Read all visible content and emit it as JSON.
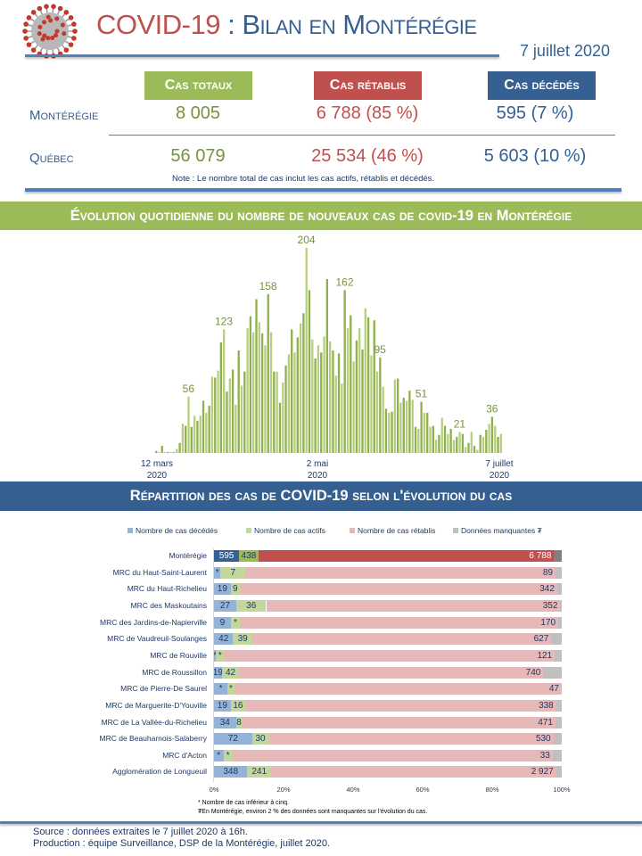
{
  "header": {
    "title_part1": "COVID-19",
    "title_part2": " : Bilan en Montérégie",
    "date": "7 juillet 2020",
    "virus_icon": "coronavirus-icon"
  },
  "summary": {
    "columns": [
      "Cas totaux",
      "Cas rétablis",
      "Cas décédés"
    ],
    "rows": [
      {
        "label": "Montérégie",
        "values": [
          "8 005",
          "6 788 (85 %)",
          "595 (7 %)"
        ]
      },
      {
        "label": "Québec",
        "values": [
          "56 079",
          "25 534 (46 %)",
          "5 603 (10 %)"
        ]
      }
    ],
    "note": "Note : Le nombre total de cas inclut les cas actifs, rétablis et décédés.",
    "colors": {
      "totaux": "#9bbb59",
      "retablis": "#c0504d",
      "decedes": "#376092"
    }
  },
  "section1": {
    "title": "Évolution quotidienne du nombre de nouveaux cas de covid-19 en Montérégie"
  },
  "section2": {
    "title": "Répartition des cas de COVID-19 selon l'évolution du cas"
  },
  "chart_data": [
    {
      "type": "bar",
      "title": "Évolution quotidienne du nombre de nouveaux cas de covid-19 en Montérégie",
      "x_start": "2020-03-12",
      "x_end": "2020-07-07",
      "x_tick_labels": [
        [
          "12 mars",
          "2020"
        ],
        [
          "2 mai",
          "2020"
        ],
        [
          "7 juillet",
          "2020"
        ]
      ],
      "values": [
        2,
        1,
        7,
        1,
        1,
        1,
        1,
        4,
        10,
        29,
        27,
        56,
        26,
        37,
        32,
        37,
        52,
        40,
        47,
        76,
        75,
        82,
        110,
        123,
        61,
        74,
        83,
        48,
        102,
        67,
        81,
        124,
        136,
        120,
        153,
        130,
        119,
        107,
        158,
        120,
        81,
        81,
        50,
        70,
        87,
        98,
        123,
        100,
        115,
        129,
        139,
        204,
        162,
        113,
        94,
        107,
        100,
        116,
        173,
        111,
        102,
        77,
        99,
        69,
        162,
        124,
        137,
        91,
        112,
        124,
        103,
        144,
        135,
        97,
        132,
        81,
        95,
        66,
        44,
        40,
        41,
        73,
        74,
        50,
        55,
        52,
        62,
        53,
        26,
        24,
        51,
        40,
        40,
        26,
        27,
        13,
        18,
        35,
        27,
        19,
        24,
        13,
        16,
        21,
        19,
        6,
        10,
        21,
        7,
        3,
        18,
        16,
        23,
        29,
        36,
        27,
        16,
        19
      ],
      "data_labels": [
        {
          "index": 11,
          "value": "56"
        },
        {
          "index": 23,
          "value": "123"
        },
        {
          "index": 38,
          "value": "158"
        },
        {
          "index": 51,
          "value": "204"
        },
        {
          "index": 64,
          "value": "162"
        },
        {
          "index": 76,
          "value": "95"
        },
        {
          "index": 90,
          "value": "51"
        },
        {
          "index": 103,
          "value": "21"
        },
        {
          "index": 114,
          "value": "36"
        }
      ],
      "color": "#9bbb59",
      "grid": false
    },
    {
      "type": "bar",
      "orientation": "horizontal-stacked-100",
      "title": "Répartition des cas de COVID-19 selon l'évolution du cas",
      "legend_position": "top",
      "series": [
        {
          "name": "Nombre de cas décédés",
          "color": "#95b3d7",
          "highlight_color": "#376092"
        },
        {
          "name": "Nombre de cas actifs",
          "color": "#c3d69b",
          "highlight_color": "#9bbb59"
        },
        {
          "name": "Nombre de cas rétablis",
          "color": "#e6b9b8",
          "highlight_color": "#c0504d"
        },
        {
          "name": "Données manquantes ₮",
          "color": "#bfbfbf",
          "highlight_color": "#7f7f7f"
        }
      ],
      "x_ticks": [
        "0%",
        "20%",
        "40%",
        "60%",
        "80%",
        "100%"
      ],
      "xlim": [
        0,
        100
      ],
      "rows": [
        {
          "label": "Montérégie",
          "percent": [
            7.2,
            5.6,
            85.0,
            2.2
          ],
          "labels": [
            "595",
            "438",
            "6 788",
            ""
          ],
          "highlight": true
        },
        {
          "label": "MRC du Haut-Saint-Laurent",
          "percent": [
            1.9,
            7.1,
            89.2,
            1.8
          ],
          "labels": [
            "*",
            "7",
            "89",
            ""
          ]
        },
        {
          "label": "MRC du Haut-Richelieu",
          "percent": [
            4.8,
            2.6,
            91.3,
            1.3
          ],
          "labels": [
            "19",
            "9",
            "342",
            ""
          ]
        },
        {
          "label": "MRC des Maskoutains",
          "percent": [
            6.4,
            8.6,
            84.6,
            0.4
          ],
          "labels": [
            "27",
            "36",
            "352",
            ""
          ]
        },
        {
          "label": "MRC des Jardins-de-Napierville",
          "percent": [
            4.8,
            2.7,
            91.5,
            1.0
          ],
          "labels": [
            "9",
            "*",
            "170",
            ""
          ]
        },
        {
          "label": "MRC de Vaudreuil-Soulanges",
          "percent": [
            5.5,
            5.5,
            86.0,
            3.0
          ],
          "labels": [
            "42",
            "39",
            "627",
            ""
          ]
        },
        {
          "label": "MRC de Rouville",
          "percent": [
            0.6,
            2.3,
            95.1,
            2.0
          ],
          "labels": [
            "*",
            "*",
            "121",
            ""
          ]
        },
        {
          "label": "MRC de Roussillon",
          "percent": [
            2.2,
            5.1,
            87.4,
            5.3
          ],
          "labels": [
            "19",
            "42",
            "740",
            ""
          ]
        },
        {
          "label": "MRC de Pierre-De Saurel",
          "percent": [
            3.9,
            1.9,
            94.2,
            0.0
          ],
          "labels": [
            "*",
            "*",
            "47",
            ""
          ]
        },
        {
          "label": "MRC de Marguerite-D'Youville",
          "percent": [
            4.8,
            4.2,
            89.4,
            1.6
          ],
          "labels": [
            "19",
            "16",
            "338",
            ""
          ]
        },
        {
          "label": "MRC de La Vallée-du-Richelieu",
          "percent": [
            6.3,
            1.7,
            90.2,
            1.8
          ],
          "labels": [
            "34",
            "8",
            "471",
            ""
          ]
        },
        {
          "label": "MRC de Beauharnois-Salaberry",
          "percent": [
            10.9,
            4.9,
            81.8,
            2.4
          ],
          "labels": [
            "72",
            "30",
            "530",
            ""
          ]
        },
        {
          "label": "MRC d'Acton",
          "percent": [
            2.7,
            2.6,
            92.1,
            2.6
          ],
          "labels": [
            "*",
            "*",
            "33",
            ""
          ]
        },
        {
          "label": "Agglomération de Longueuil",
          "percent": [
            9.6,
            6.8,
            82.0,
            1.6
          ],
          "labels": [
            "348",
            "241",
            "2 927",
            ""
          ]
        }
      ],
      "footnotes": [
        "* Nombre de cas inférieur à cinq.",
        "₮En Montérégie, environ 2 % des données sont manquantes sur l'évolution du cas."
      ]
    }
  ],
  "footer": {
    "source": "Source : données extraites le 7 juillet 2020 à 16h.",
    "production": "Production : équipe Surveillance, DSP de la Montérégie, juillet 2020."
  }
}
